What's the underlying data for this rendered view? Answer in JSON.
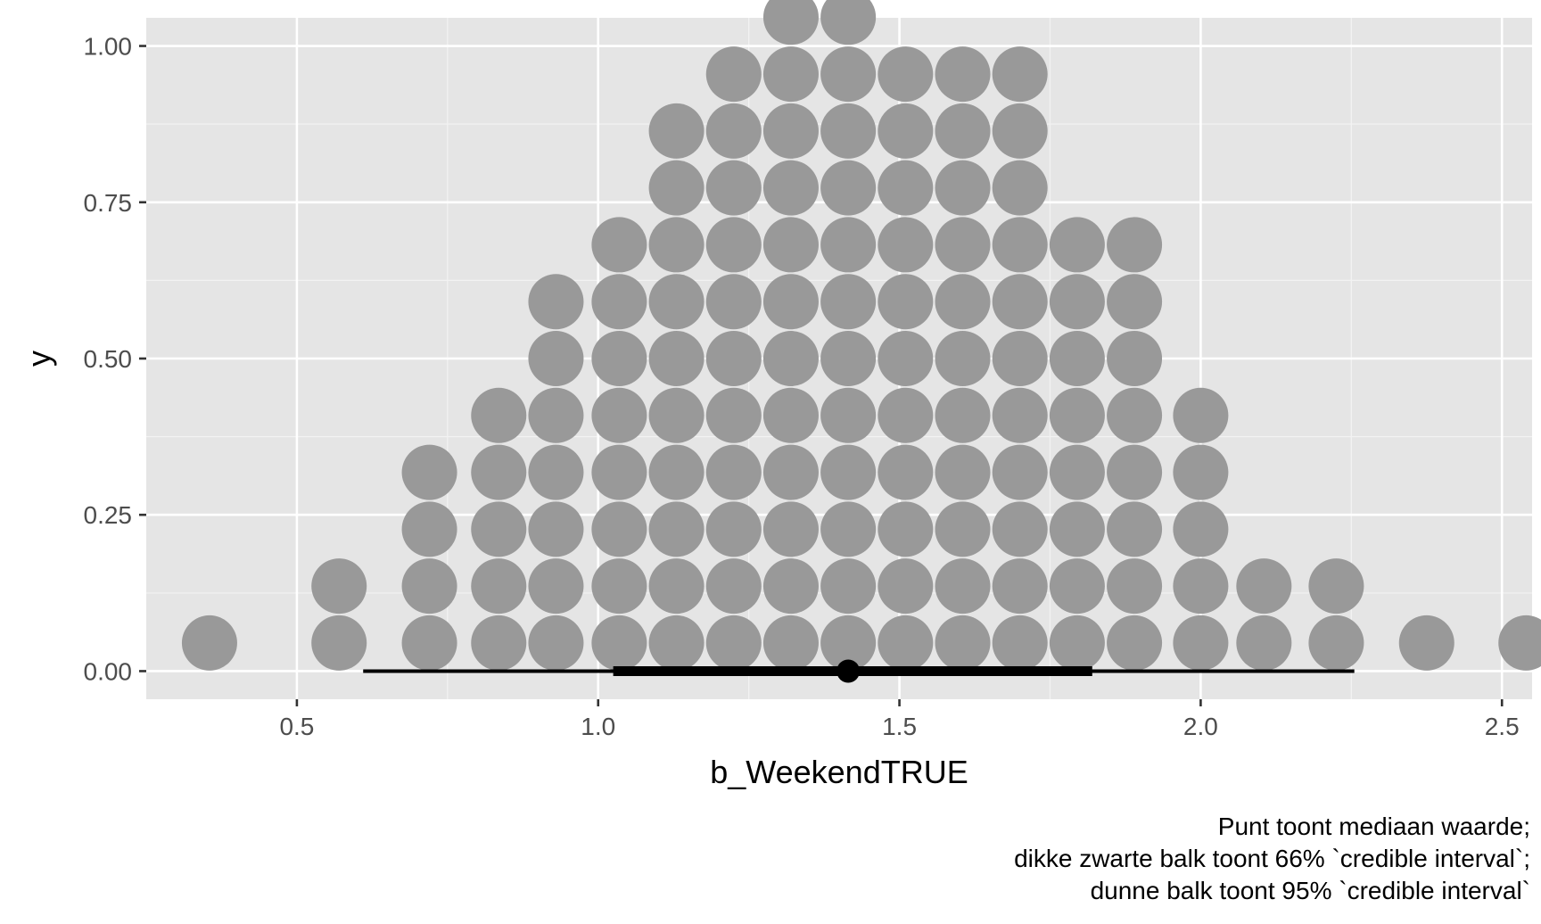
{
  "chart_data": {
    "type": "dotplot",
    "xlabel": "b_WeekendTRUE",
    "ylabel": "y",
    "xlim": [
      0.25,
      2.55
    ],
    "ylim": [
      -0.045,
      1.045
    ],
    "x_ticks": [
      {
        "value": 0.5,
        "label": "0.5"
      },
      {
        "value": 1.0,
        "label": "1.0"
      },
      {
        "value": 1.5,
        "label": "1.5"
      },
      {
        "value": 2.0,
        "label": "2.0"
      },
      {
        "value": 2.5,
        "label": "2.5"
      }
    ],
    "y_ticks": [
      {
        "value": 0.0,
        "label": "0.00"
      },
      {
        "value": 0.25,
        "label": "0.25"
      },
      {
        "value": 0.5,
        "label": "0.50"
      },
      {
        "value": 0.75,
        "label": "0.75"
      },
      {
        "value": 1.0,
        "label": "1.00"
      }
    ],
    "grid": true,
    "dot_stacks": [
      {
        "x": 0.355,
        "count": 1
      },
      {
        "x": 0.57,
        "count": 2
      },
      {
        "x": 0.72,
        "count": 4
      },
      {
        "x": 0.835,
        "count": 5
      },
      {
        "x": 0.93,
        "count": 7
      },
      {
        "x": 1.035,
        "count": 8
      },
      {
        "x": 1.13,
        "count": 10
      },
      {
        "x": 1.225,
        "count": 11
      },
      {
        "x": 1.32,
        "count": 13
      },
      {
        "x": 1.415,
        "count": 13
      },
      {
        "x": 1.51,
        "count": 11
      },
      {
        "x": 1.605,
        "count": 11
      },
      {
        "x": 1.7,
        "count": 11
      },
      {
        "x": 1.795,
        "count": 8
      },
      {
        "x": 1.89,
        "count": 8
      },
      {
        "x": 2.0,
        "count": 5
      },
      {
        "x": 2.105,
        "count": 2
      },
      {
        "x": 2.225,
        "count": 2
      },
      {
        "x": 2.375,
        "count": 1
      },
      {
        "x": 2.54,
        "count": 1
      }
    ],
    "dot_step": 0.091,
    "dot_base": 0.045,
    "median": 1.415,
    "interval_66": [
      1.025,
      1.82
    ],
    "interval_95": [
      0.61,
      2.255
    ],
    "dot_color": "#999999",
    "panel_color": "#e5e5e5",
    "caption_lines": [
      "Punt toont mediaan waarde;",
      "dikke zwarte balk toont 66% `credible interval`;",
      "dunne balk toont 95% `credible interval`"
    ]
  }
}
